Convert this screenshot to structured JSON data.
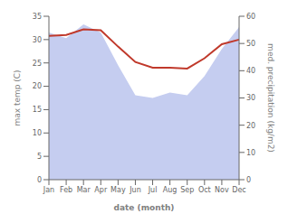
{
  "chart_data": {
    "type": "line",
    "categories": [
      "Jan",
      "Feb",
      "Mar",
      "Apr",
      "May",
      "Jun",
      "Jul",
      "Aug",
      "Sep",
      "Oct",
      "Nov",
      "Dec"
    ],
    "series": [
      {
        "type": "area",
        "color": "#c5cdf0",
        "axis": "y2",
        "values": [
          54,
          52,
          57,
          54,
          42,
          31,
          30,
          32,
          31,
          38,
          48,
          56
        ]
      },
      {
        "type": "line",
        "color": "#c0392b",
        "values": [
          30.8,
          31.0,
          32.2,
          32.0,
          28.5,
          25.2,
          24.0,
          24.0,
          23.8,
          26.0,
          29.0,
          30.0
        ]
      }
    ],
    "xlabel": "date (month)",
    "ylabel": "max temp (C)",
    "y2label": "med. precipitation (kg/m2)",
    "ylim": [
      0,
      35
    ],
    "yticks": [
      0,
      5,
      10,
      15,
      20,
      25,
      30,
      35
    ],
    "y2lim": [
      0,
      60
    ],
    "y2ticks": [
      0,
      10,
      20,
      30,
      40,
      50,
      60
    ],
    "grid": false
  }
}
